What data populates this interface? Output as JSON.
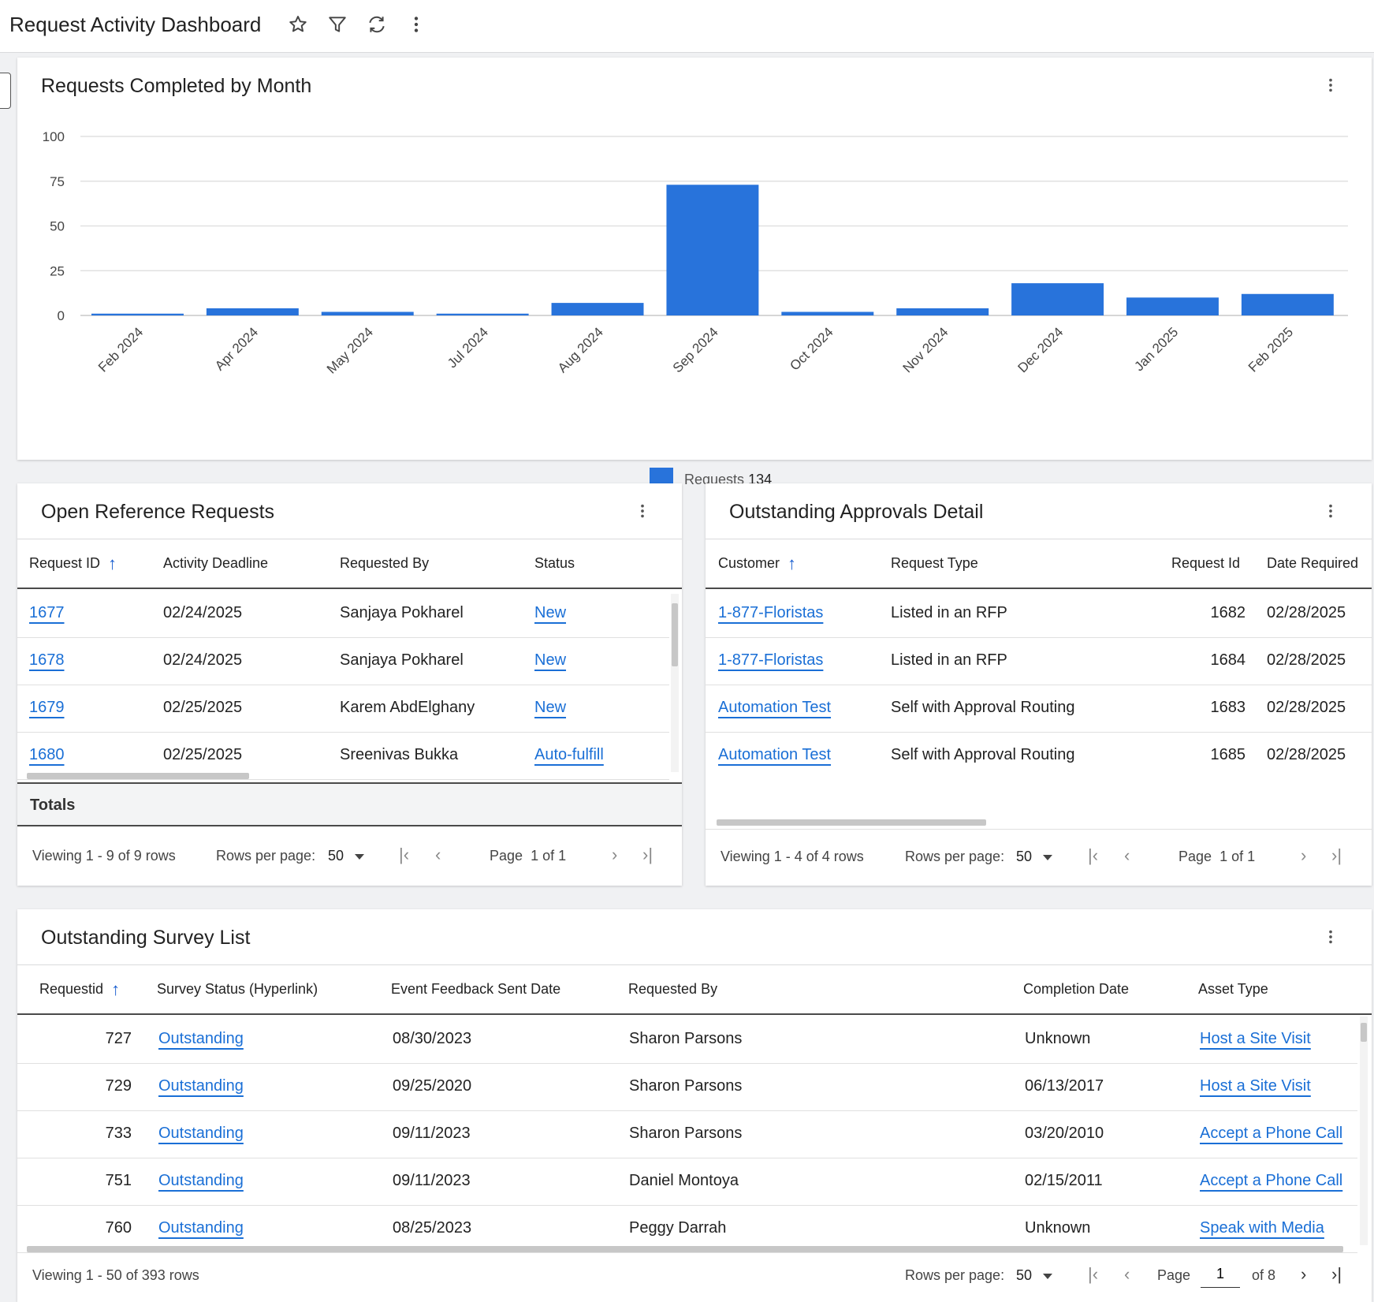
{
  "app": {
    "title": "Request Activity Dashboard"
  },
  "toolbar": {
    "icons": [
      "star-icon",
      "filter-icon",
      "refresh-icon",
      "more-vertical-icon"
    ]
  },
  "chart_card": {
    "title": "Requests Completed by Month",
    "legend": {
      "label": "Requests",
      "total": "134"
    }
  },
  "chart_data": {
    "type": "bar",
    "title": "Requests Completed by Month",
    "categories": [
      "Feb 2024",
      "Apr 2024",
      "May 2024",
      "Jul 2024",
      "Aug 2024",
      "Sep 2024",
      "Oct 2024",
      "Nov 2024",
      "Dec 2024",
      "Jan 2025",
      "Feb 2025"
    ],
    "series": [
      {
        "name": "Requests",
        "values": [
          1,
          4,
          2,
          1,
          7,
          73,
          2,
          4,
          18,
          10,
          12
        ]
      }
    ],
    "ylim": [
      0,
      100
    ],
    "yticks": [
      0,
      25,
      50,
      75,
      100
    ],
    "grid": true,
    "legend_position": "bottom-center",
    "color": "#2873db"
  },
  "open_requests": {
    "title": "Open Reference Requests",
    "columns": [
      "Request ID",
      "Activity Deadline",
      "Requested By",
      "Status"
    ],
    "rows": [
      [
        "1677",
        "02/24/2025",
        "Sanjaya Pokharel",
        "New"
      ],
      [
        "1678",
        "02/24/2025",
        "Sanjaya Pokharel",
        "New"
      ],
      [
        "1679",
        "02/25/2025",
        "Karem AbdElghany",
        "New"
      ],
      [
        "1680",
        "02/25/2025",
        "Sreenivas Bukka",
        "Auto-fulfill"
      ]
    ],
    "totals_label": "Totals",
    "pager": {
      "viewing": "Viewing 1 - 9 of 9 rows",
      "rows_per_page_label": "Rows per page:",
      "rows_per_page": "50",
      "page_label": "Page",
      "page_info": "1 of 1"
    }
  },
  "approvals": {
    "title": "Outstanding Approvals Detail",
    "columns": [
      "Customer",
      "Request Type",
      "Request Id",
      "Date Required"
    ],
    "rows": [
      [
        "1-877-Floristas",
        "Listed in an RFP",
        "1682",
        "02/28/2025"
      ],
      [
        "1-877-Floristas",
        "Listed in an RFP",
        "1684",
        "02/28/2025"
      ],
      [
        "Automation Test",
        "Self with Approval Routing",
        "1683",
        "02/28/2025"
      ],
      [
        "Automation Test",
        "Self with Approval Routing",
        "1685",
        "02/28/2025"
      ]
    ],
    "pager": {
      "viewing": "Viewing 1 - 4 of 4 rows",
      "rows_per_page_label": "Rows per page:",
      "rows_per_page": "50",
      "page_label": "Page",
      "page_info": "1 of 1"
    }
  },
  "surveys": {
    "title": "Outstanding Survey List",
    "columns": [
      "Requestid",
      "Survey Status (Hyperlink)",
      "Event Feedback Sent Date",
      "Requested By",
      "Completion Date",
      "Asset Type"
    ],
    "rows": [
      [
        "727",
        "Outstanding",
        "08/30/2023",
        "Sharon Parsons",
        "Unknown",
        "Host a Site Visit"
      ],
      [
        "729",
        "Outstanding",
        "09/25/2020",
        "Sharon Parsons",
        "06/13/2017",
        "Host a Site Visit"
      ],
      [
        "733",
        "Outstanding",
        "09/11/2023",
        "Sharon Parsons",
        "03/20/2010",
        "Accept a Phone Call"
      ],
      [
        "751",
        "Outstanding",
        "09/11/2023",
        "Daniel Montoya",
        "02/15/2011",
        "Accept a Phone Call"
      ],
      [
        "760",
        "Outstanding",
        "08/25/2023",
        "Peggy Darrah",
        "Unknown",
        "Speak with Media"
      ]
    ],
    "pager": {
      "viewing": "Viewing 1 - 50 of 393 rows",
      "rows_per_page_label": "Rows per page:",
      "rows_per_page": "50",
      "page_label": "Page",
      "page_value": "1",
      "page_of": "of 8"
    }
  }
}
